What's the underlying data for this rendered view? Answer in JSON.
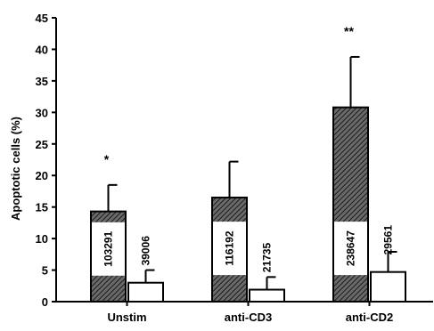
{
  "chart_data": {
    "type": "bar",
    "title": "",
    "ylabel": "Apoptotic cells (%)",
    "xlabel": "",
    "ylim": [
      0,
      45
    ],
    "yticks": [
      0,
      5,
      10,
      15,
      20,
      25,
      30,
      35,
      40,
      45
    ],
    "categories": [
      "Unstim",
      "anti-CD3",
      "anti-CD2"
    ],
    "series": [
      {
        "fill": "hatched",
        "values": [
          14.3,
          16.5,
          30.8
        ],
        "errors": [
          4.2,
          5.7,
          8.0
        ],
        "bar_labels": [
          "103291",
          "116192",
          "238647"
        ]
      },
      {
        "fill": "white",
        "values": [
          3.0,
          1.9,
          4.7
        ],
        "errors": [
          2.0,
          2.0,
          3.2
        ],
        "bar_labels": [
          "39006",
          "21735",
          "29561"
        ]
      }
    ],
    "significance": [
      "*",
      "",
      "**"
    ],
    "grid": false,
    "legend": "none"
  }
}
